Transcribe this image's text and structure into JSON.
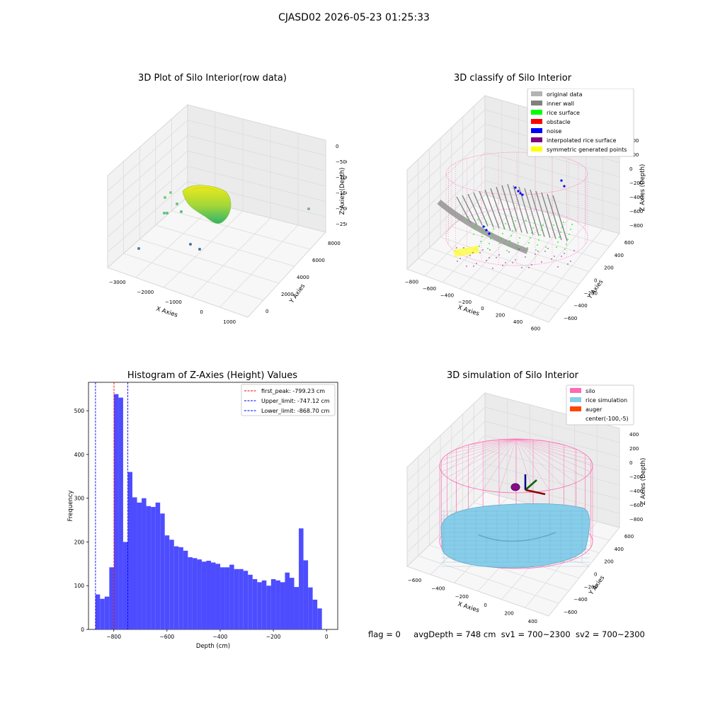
{
  "figure_title": "CJASD02 2026-05-23 01:25:33",
  "footer": {
    "flag": "flag = 0",
    "avg_depth": "avgDepth = 748 cm",
    "sv1": "sv1 = 700~2300",
    "sv2": "sv2 = 700~2300"
  },
  "colors": {
    "histogram_bar": "#4d4dff",
    "first_peak_line": "#ff0000",
    "limit_lines": "#0000ff",
    "silo": "#ff69b4",
    "rice_simulation": "#87ceeb",
    "auger": "#ff4500",
    "original_data": "#b3b3b3",
    "inner_wall": "#808080",
    "rice_surface": "#00ff00",
    "obstacle": "#ff0000",
    "noise": "#0000ff",
    "interpolated_rice_surface": "#800080",
    "symmetric_generated_points": "#ffff00"
  },
  "panels": {
    "raw3d": {
      "title": "3D Plot of Silo Interior(row data)",
      "xlabel": "X Axies",
      "ylabel": "Y Axies",
      "zlabel": "Z Axies (Depth)",
      "xticks": [
        "−3000",
        "−2000",
        "−1000",
        "0",
        "1000"
      ],
      "yticks": [
        "0",
        "2000",
        "4000",
        "6000",
        "8000"
      ],
      "zticks": [
        "0",
        "−500",
        "−1000",
        "−1500",
        "−2000",
        "−2500"
      ]
    },
    "classify3d": {
      "title": "3D classify of Silo Interior",
      "xlabel": "X Axies",
      "ylabel": "Y Axies",
      "zlabel": "Z Axies (Depth)",
      "xticks": [
        "−800",
        "−600",
        "−400",
        "−200",
        "0",
        "200",
        "400",
        "600"
      ],
      "yticks": [
        "−600",
        "−400",
        "−200",
        "0",
        "200",
        "400",
        "600"
      ],
      "zticks": [
        "400",
        "200",
        "0",
        "−200",
        "−400",
        "−600",
        "−800"
      ],
      "legend": [
        {
          "label": "original data",
          "color": "#b3b3b3"
        },
        {
          "label": "inner wall",
          "color": "#808080"
        },
        {
          "label": "rice surface",
          "color": "#00ff00"
        },
        {
          "label": "obstacle",
          "color": "#ff0000"
        },
        {
          "label": "noise",
          "color": "#0000ff"
        },
        {
          "label": "interpolated rice surface",
          "color": "#800080"
        },
        {
          "label": "symmetric generated points",
          "color": "#ffff00"
        }
      ]
    },
    "sim3d": {
      "title": "3D simulation of Silo Interior",
      "xlabel": "X Axies",
      "ylabel": "Y Axies",
      "zlabel": "Z Axies (Depth)",
      "xticks": [
        "−600",
        "−400",
        "−200",
        "0",
        "200",
        "400"
      ],
      "yticks": [
        "−600",
        "−400",
        "−200",
        "0",
        "200",
        "400",
        "600"
      ],
      "zticks": [
        "400",
        "200",
        "0",
        "−200",
        "−400",
        "−600",
        "−800"
      ],
      "legend": [
        {
          "label": "silo",
          "color": "#ff69b4"
        },
        {
          "label": "rice simulation",
          "color": "#87ceeb"
        },
        {
          "label": "auger",
          "color": "#ff4500"
        },
        {
          "label": "center(-100,-5)",
          "color": ""
        }
      ]
    }
  },
  "chart_data": [
    {
      "type": "bar",
      "title": "Histogram of Z-Axies (Height) Values",
      "xlabel": "Depth (cm)",
      "ylabel": "Frequency",
      "xlim": [
        -895,
        42
      ],
      "ylim": [
        0,
        565
      ],
      "xticks": [
        -800,
        -600,
        -400,
        -200,
        0
      ],
      "xtick_labels": [
        "−800",
        "−600",
        "−400",
        "−200",
        "0"
      ],
      "yticks": [
        0,
        100,
        200,
        300,
        400,
        500
      ],
      "grid": false,
      "legend_position": "upper-right",
      "bin_start": -869,
      "bin_width": 17.38,
      "values": [
        80,
        70,
        75,
        142,
        538,
        530,
        200,
        360,
        302,
        290,
        300,
        282,
        280,
        290,
        265,
        215,
        205,
        190,
        188,
        180,
        165,
        163,
        160,
        155,
        157,
        153,
        150,
        142,
        142,
        148,
        138,
        138,
        134,
        125,
        115,
        108,
        112,
        100,
        115,
        112,
        108,
        130,
        118,
        97,
        231,
        158,
        96,
        68,
        48
      ],
      "vlines": [
        {
          "name": "first_peak: -799.23 cm",
          "x": -799.23,
          "style": "dashed",
          "color": "#ff0000"
        },
        {
          "name": "Upper_limit: -747.12 cm",
          "x": -747.12,
          "style": "dashed",
          "color": "#0000ff"
        },
        {
          "name": "Lower_limit: -868.70 cm",
          "x": -868.7,
          "style": "dashed",
          "color": "#0000ff"
        }
      ]
    }
  ]
}
